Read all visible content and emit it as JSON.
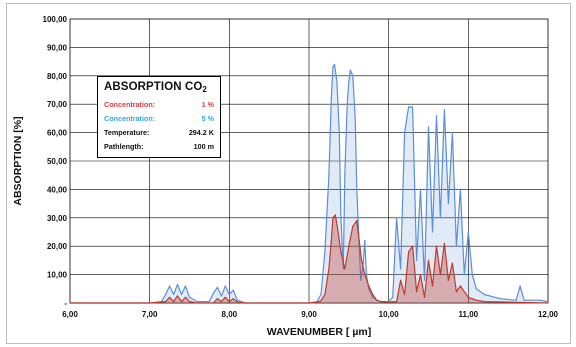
{
  "chart_data": {
    "type": "line",
    "title": "ABSORPTION CO2",
    "xlabel": "WAVENUMBER [ µm]",
    "ylabel": "ABSORPTION [%]",
    "xlim": [
      6.0,
      12.0
    ],
    "ylim": [
      0,
      100
    ],
    "x_ticks": [
      "6,00",
      "7,00",
      "8,00",
      "9,00",
      "10,00",
      "11,00",
      "12,00"
    ],
    "y_ticks": [
      "-",
      "10,00",
      "20,00",
      "30,00",
      "40,00",
      "50,00",
      "60,00",
      "70,00",
      "80,00",
      "90,00",
      "100,00"
    ],
    "grid": true,
    "legend_placement": "top-left",
    "legend": {
      "title_main": "ABSORPTION CO",
      "title_sub": "2",
      "rows": [
        {
          "label": "Concentration:",
          "value": "1 %",
          "color": "#e03a3a"
        },
        {
          "label": "Concentration:",
          "value": "5 %",
          "color": "#33a8e0"
        },
        {
          "label": "Temperature:",
          "value": "294.2 K",
          "color": "#111111"
        },
        {
          "label": "Pathlength:",
          "value": "100 m",
          "color": "#111111"
        }
      ]
    },
    "series": [
      {
        "name": "Concentration: 5 %",
        "color": "#5b8fd6",
        "x": [
          6.0,
          7.0,
          7.15,
          7.2,
          7.25,
          7.3,
          7.35,
          7.4,
          7.45,
          7.5,
          7.6,
          7.75,
          7.8,
          7.85,
          7.9,
          7.95,
          8.0,
          8.05,
          8.1,
          8.2,
          9.0,
          9.1,
          9.15,
          9.2,
          9.25,
          9.28,
          9.3,
          9.32,
          9.35,
          9.38,
          9.4,
          9.43,
          9.45,
          9.48,
          9.5,
          9.52,
          9.55,
          9.58,
          9.6,
          9.63,
          9.65,
          9.68,
          9.7,
          9.72,
          9.75,
          9.8,
          9.85,
          9.9,
          10.0,
          10.05,
          10.1,
          10.15,
          10.2,
          10.25,
          10.3,
          10.35,
          10.4,
          10.45,
          10.5,
          10.55,
          10.6,
          10.65,
          10.7,
          10.75,
          10.8,
          10.85,
          10.9,
          10.95,
          11.0,
          11.05,
          11.1,
          11.2,
          11.4,
          11.6,
          11.65,
          11.7,
          11.8,
          11.9,
          12.0
        ],
        "values": [
          0,
          0,
          0.5,
          3,
          6,
          3,
          6.5,
          3,
          6,
          2,
          0.5,
          0.5,
          3.5,
          5.5,
          2.5,
          6,
          3,
          4.5,
          1,
          0,
          0,
          0.5,
          3,
          18,
          45,
          72,
          83,
          84,
          78,
          60,
          30,
          12,
          45,
          70,
          78,
          82,
          80,
          65,
          40,
          20,
          8,
          14,
          22,
          10,
          5,
          2,
          1,
          0.5,
          0.5,
          2,
          30,
          12,
          60,
          69,
          69,
          15,
          40,
          8,
          62,
          25,
          66,
          30,
          68,
          35,
          60,
          20,
          40,
          10,
          25,
          10,
          5,
          3,
          1.5,
          1,
          6,
          1,
          1,
          1,
          0.5
        ]
      },
      {
        "name": "Concentration: 1 %",
        "color": "#c0392b",
        "x": [
          6.0,
          7.0,
          7.2,
          7.25,
          7.3,
          7.35,
          7.4,
          7.45,
          7.5,
          7.6,
          7.8,
          7.85,
          7.9,
          7.95,
          8.0,
          8.05,
          8.1,
          8.2,
          9.0,
          9.1,
          9.15,
          9.2,
          9.25,
          9.28,
          9.3,
          9.33,
          9.36,
          9.4,
          9.45,
          9.5,
          9.55,
          9.6,
          9.63,
          9.66,
          9.7,
          9.75,
          9.8,
          9.85,
          9.9,
          10.0,
          10.1,
          10.15,
          10.2,
          10.25,
          10.3,
          10.35,
          10.4,
          10.45,
          10.5,
          10.55,
          10.6,
          10.65,
          10.7,
          10.75,
          10.8,
          10.85,
          10.9,
          11.0,
          11.1,
          11.2,
          12.0
        ],
        "values": [
          0,
          0,
          0.5,
          2,
          0.5,
          2.5,
          0.5,
          2,
          0.5,
          0,
          0,
          1.5,
          0.5,
          2,
          0.5,
          1.5,
          0.3,
          0,
          0,
          0.2,
          0.8,
          3,
          12,
          22,
          30,
          31,
          26,
          18,
          12,
          20,
          27,
          29,
          22,
          15,
          10,
          6,
          3,
          1,
          0.5,
          0.3,
          0.5,
          8,
          3,
          18,
          20,
          4,
          10,
          2,
          15,
          6,
          20,
          10,
          21,
          8,
          14,
          4,
          6,
          2,
          1,
          0.5,
          0
        ]
      }
    ]
  }
}
